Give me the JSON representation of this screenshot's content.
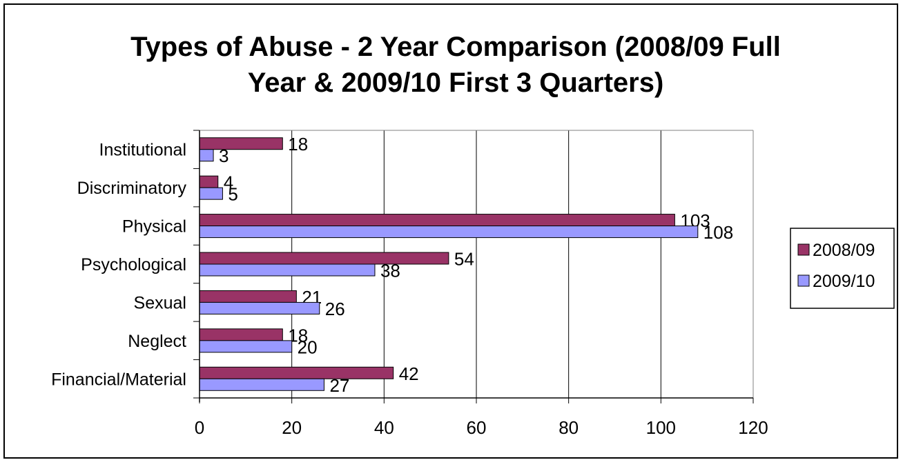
{
  "chart_data": {
    "type": "bar",
    "orientation": "horizontal",
    "title_lines": [
      "Types of Abuse - 2 Year Comparison (2008/09 Full",
      "Year & 2009/10 First 3 Quarters)"
    ],
    "categories": [
      "Institutional",
      "Discriminatory",
      "Physical",
      "Psychological",
      "Sexual",
      "Neglect",
      "Financial/Material"
    ],
    "series": [
      {
        "name": "2008/09",
        "values": [
          18,
          4,
          103,
          54,
          21,
          18,
          42
        ],
        "color": "#993366"
      },
      {
        "name": "2009/10",
        "values": [
          3,
          5,
          108,
          38,
          26,
          20,
          27
        ],
        "color": "#9999ff"
      }
    ],
    "xlim": [
      0,
      120
    ],
    "x_ticks": [
      "0",
      "20",
      "40",
      "60",
      "80",
      "100",
      "120"
    ],
    "grid": "vertical",
    "legend_position": "right",
    "xlabel": "",
    "ylabel": ""
  }
}
